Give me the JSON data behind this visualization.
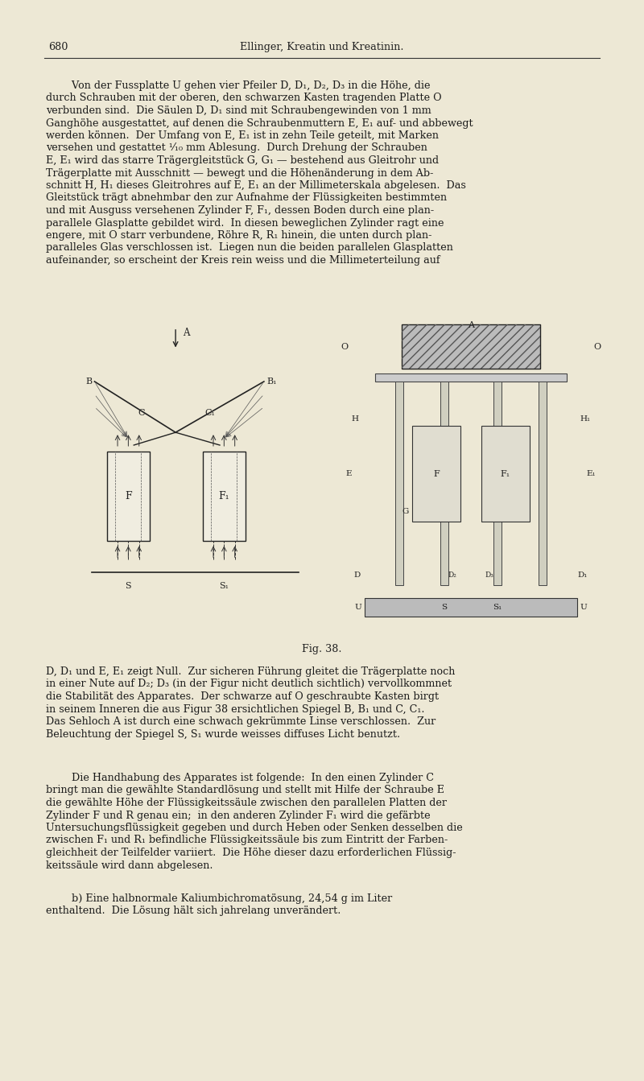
{
  "bg": "#EDE8D5",
  "pw": 8.0,
  "ph": 13.43,
  "dpi": 100,
  "hdr_num": "680",
  "hdr_title": "Ellinger, Kreatin und Kreatinin.",
  "fig_caption": "Fig. 38.",
  "para1_lines": [
    "        Von der Fussplatte U gehen vier Pfeiler D, D₁, D₂, D₃ in die Höhe, die",
    "durch Schrauben mit der oberen, den schwarzen Kasten tragenden Platte O",
    "verbunden sind.  Die Säulen D, D₁ sind mit Schraubengewinden von 1 mm",
    "Ganghöhe ausgestattet, auf denen die Schraubenmuttern E, E₁ auf- und abbewegt",
    "werden können.  Der Umfang von E, E₁ ist in zehn Teile geteilt, mit Marken",
    "versehen und gestattet ¹⁄₁₀ mm Ablesung.  Durch Drehung der Schrauben",
    "E, E₁ wird das starre Trägergleitstück G, G₁ — bestehend aus Gleitrohr und",
    "Trägerplatte mit Ausschnitt — bewegt und die Höhenänderung in dem Ab-",
    "schnitt H, H₁ dieses Gleitrohres auf E, E₁ an der Millimeterskala abgelesen.  Das",
    "Gleitstück trägt abnehmbar den zur Aufnahme der Flüssigkeiten bestimmten",
    "und mit Ausguss versehenen Zylinder F, F₁, dessen Boden durch eine plan-",
    "parallele Glasplatte gebildet wird.  In diesen beweglichen Zylinder ragt eine",
    "engere, mit O starr verbundene, Röhre R, R₁ hinein, die unten durch plan-",
    "paralleles Glas verschlossen ist.  Liegen nun die beiden parallelen Glasplatten",
    "aufeinander, so erscheint der Kreis rein weiss und die Millimeterteilung auf"
  ],
  "para2_lines": [
    "D, D₁ und E, E₁ zeigt Null.  Zur sicheren Führung gleitet die Trägerplatte noch",
    "in einer Nute auf D₂; D₃ (in der Figur nicht deutlich sichtlich) vervollkommnet",
    "die Stabilität des Apparates.  Der schwarze auf O geschraubte Kasten birgt",
    "in seinem Inneren die aus Figur 38 ersichtlichen Spiegel B, B₁ und C, C₁.",
    "Das Sehloch A ist durch eine schwach gekrümmte Linse verschlossen.  Zur",
    "Beleuchtung der Spiegel S, S₁ wurde weisses diffuses Licht benutzt."
  ],
  "para3_lines": [
    "        Die Handhabung des Apparates ist folgende:  In den einen Zylinder C",
    "bringt man die gewählte Standardlösung und stellt mit Hilfe der Schraube E",
    "die gewählte Höhe der Flüssigkeitssäule zwischen den parallelen Platten der",
    "Zylinder F und R genau ein;  in den anderen Zylinder F₁ wird die gefärbte",
    "Untersuchungsflüssigkeit gegeben und durch Heben oder Senken desselben die",
    "zwischen F₁ und R₁ befindliche Flüssigkeitssäule bis zum Eintritt der Farben-",
    "gleichheit der Teilfelder variiert.  Die Höhe dieser dazu erforderlichen Flüssig-",
    "keitssäule wird dann abgelesen."
  ],
  "para4_lines": [
    "        b) Eine halbnormale Kaliumbichromatösung, 24,54 g im Liter",
    "enthaltend.  Die Lösung hält sich jahrelang unverändert."
  ]
}
